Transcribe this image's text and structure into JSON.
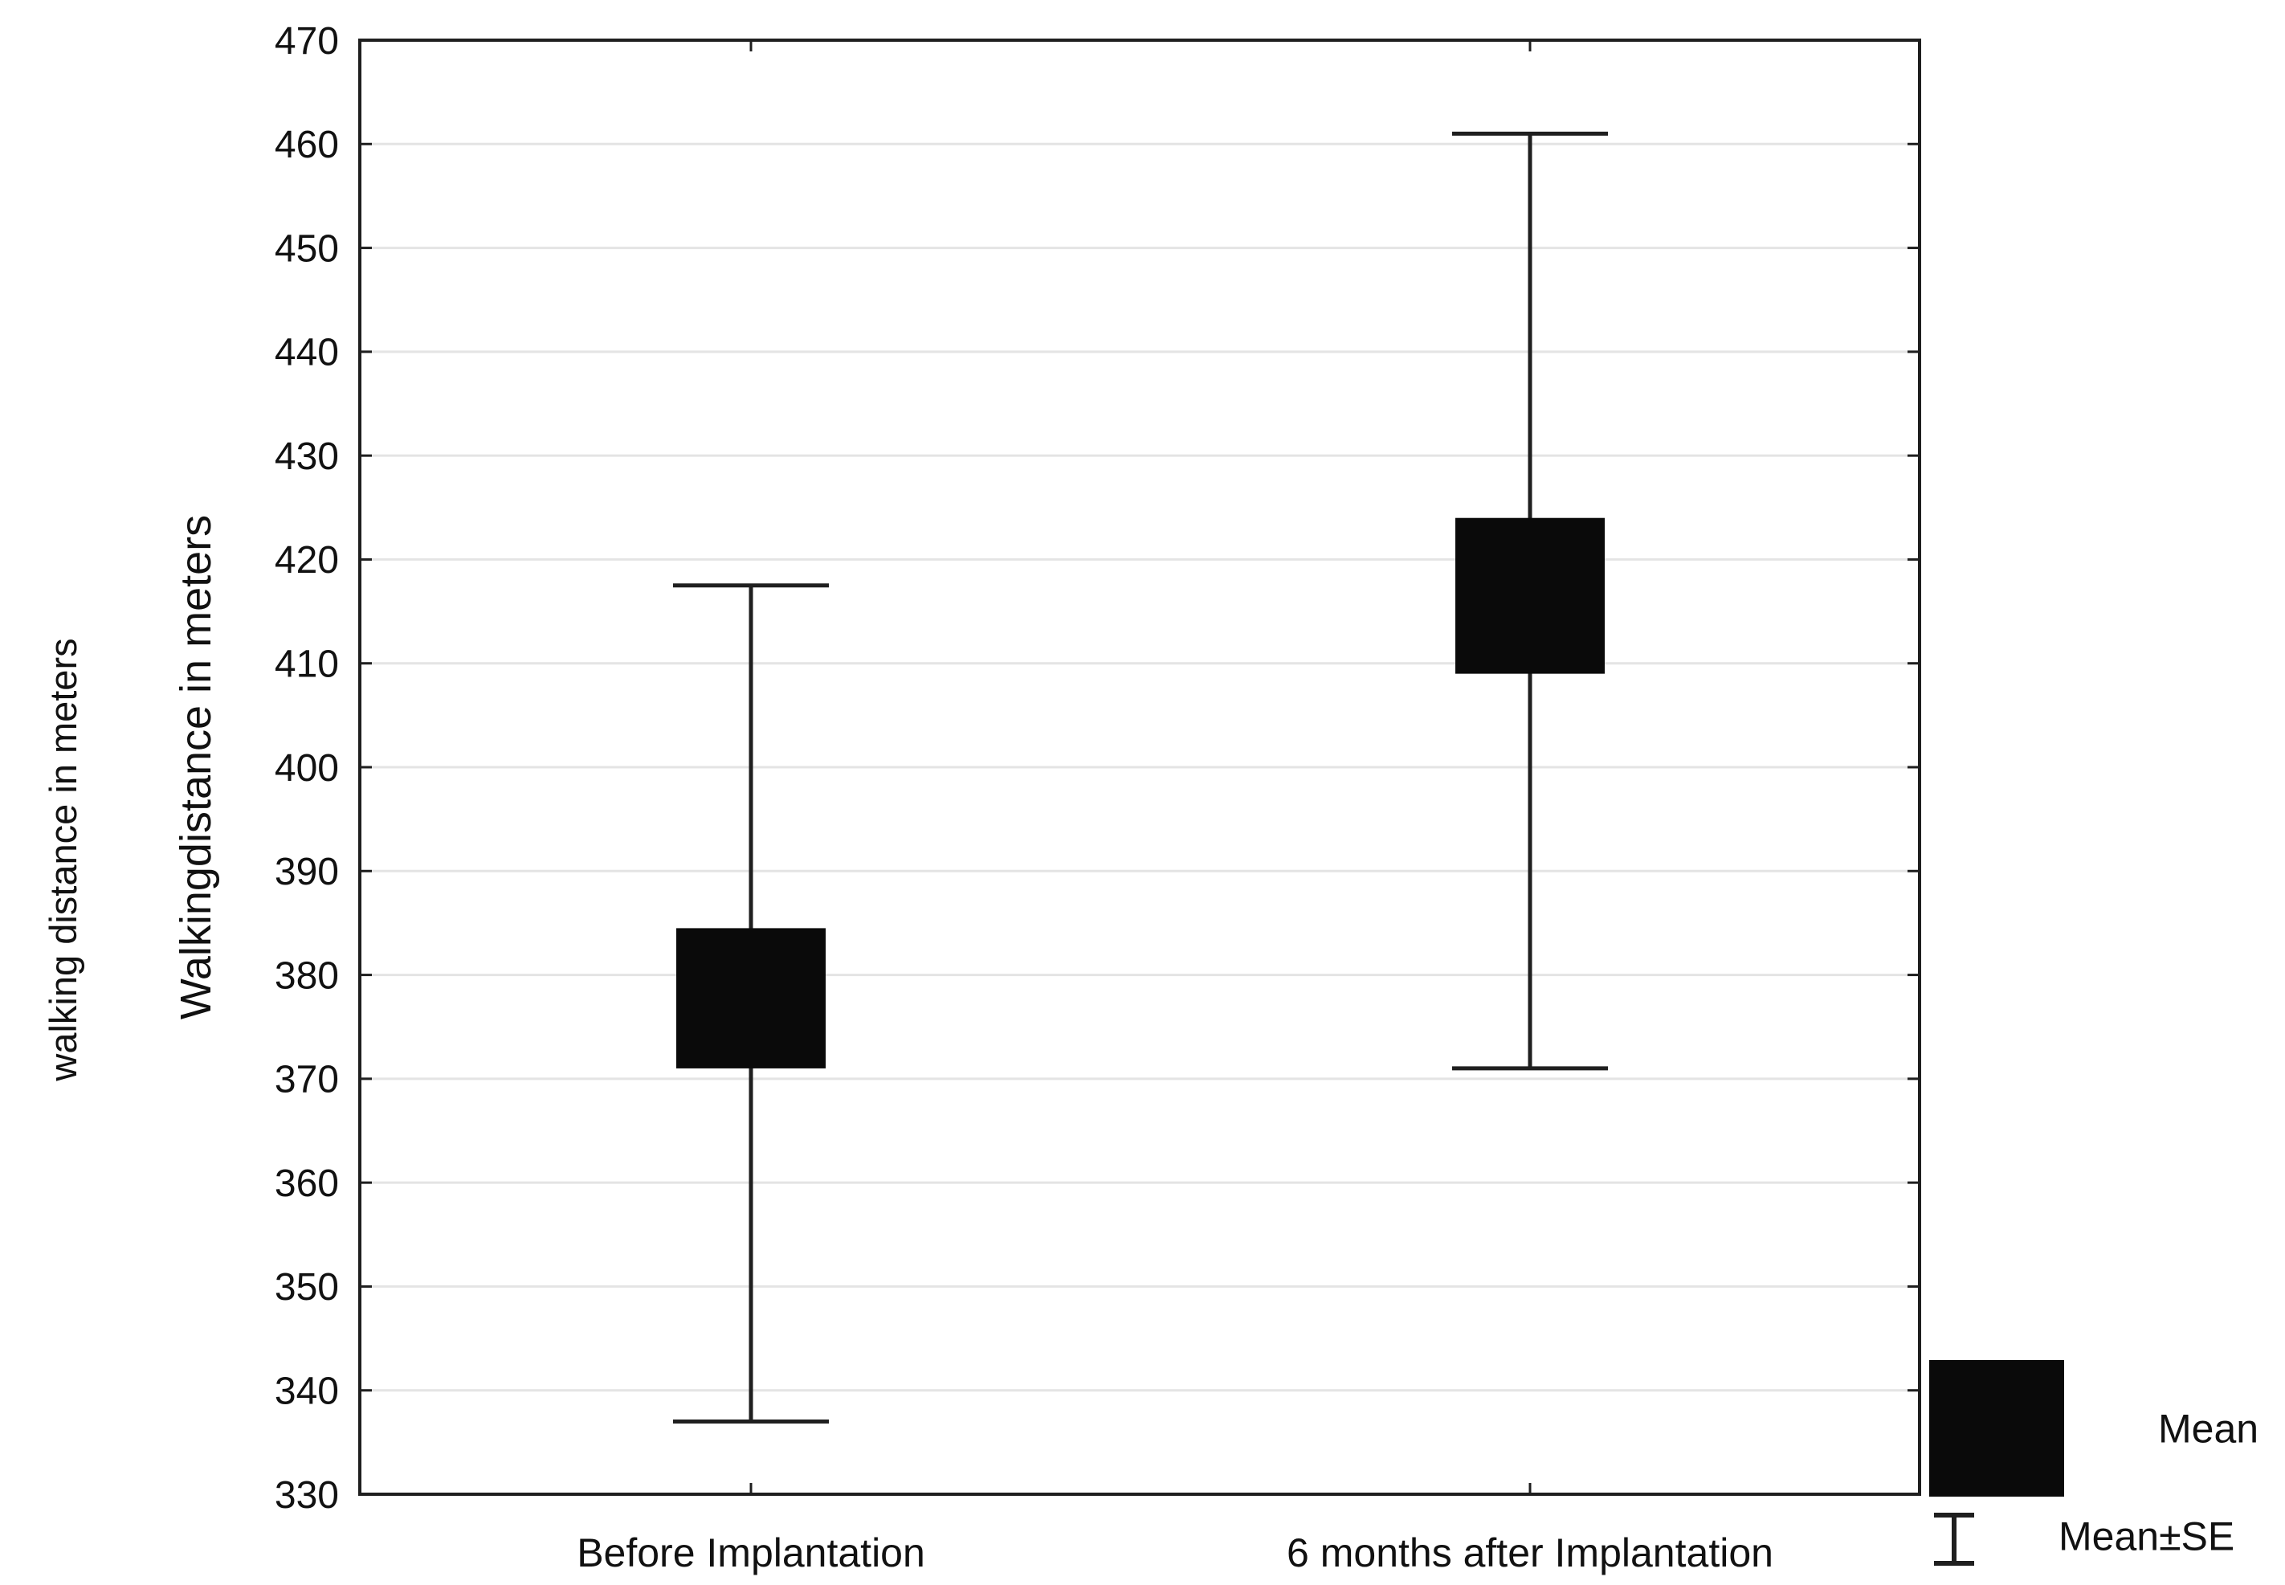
{
  "page": {
    "background": "#ffffff"
  },
  "chart_data": {
    "type": "box",
    "title": "",
    "ylabel_inner": "Walkingdistance in meters",
    "ylabel_outer": "walking distance in meters",
    "categories": [
      "Before Implantation",
      "6 months after Implantation"
    ],
    "series": [
      {
        "category": "Before Implantation",
        "mean": 377.8,
        "box_low": 371,
        "box_high": 384.5,
        "whisker_low": 337,
        "whisker_high": 417.5
      },
      {
        "category": "6 months after Implantation",
        "mean": 416.5,
        "box_low": 409,
        "box_high": 424,
        "whisker_low": 371,
        "whisker_high": 461
      }
    ],
    "y_axis": {
      "min": 330,
      "max": 470,
      "step": 10,
      "tick_labels": [
        "470",
        "460",
        "450",
        "440",
        "430",
        "420",
        "410",
        "400",
        "390",
        "380",
        "370",
        "360",
        "350",
        "340",
        "330"
      ]
    },
    "x_axis": {
      "tick_labels": [
        "Before Implantation",
        "6 months after Implantation"
      ]
    },
    "legend": {
      "position": "bottom-right",
      "items": [
        {
          "symbol": "mean-square",
          "label": "Mean"
        },
        {
          "symbol": "error-bar",
          "label": "Mean±SE"
        }
      ]
    },
    "grid": true,
    "style": {
      "box_fill": "#0a0a0a",
      "line_color": "#1f1f1f",
      "grid_color": "#e4e4e4",
      "text_color": "#111111",
      "background": "#ffffff"
    }
  }
}
